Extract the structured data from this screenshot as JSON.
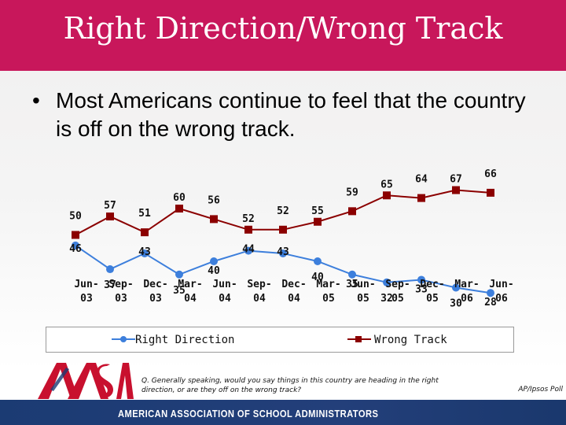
{
  "title": "Right Direction/Wrong Track",
  "bullet": {
    "symbol": "•",
    "text": "Most Americans continue to feel that the country is off on the wrong track."
  },
  "chart_data": {
    "type": "line",
    "categories": [
      [
        "Jun-",
        "03"
      ],
      [
        "Sep-",
        "03"
      ],
      [
        "Dec-",
        "03"
      ],
      [
        "Mar-",
        "04"
      ],
      [
        "Jun-",
        "04"
      ],
      [
        "Sep-",
        "04"
      ],
      [
        "Dec-",
        "04"
      ],
      [
        "Mar-",
        "05"
      ],
      [
        "Jun-",
        "05"
      ],
      [
        "Sep-",
        "05"
      ],
      [
        "Dec-",
        "05"
      ],
      [
        "Mar-",
        "06"
      ],
      [
        "Jun-",
        "06"
      ]
    ],
    "series": [
      {
        "name": "Right Direction",
        "color": "#3d7fdc",
        "marker": "circle",
        "values": [
          46,
          37,
          43,
          35,
          40,
          44,
          43,
          40,
          35,
          32,
          33,
          30,
          28
        ]
      },
      {
        "name": "Wrong Track",
        "color": "#8b0000",
        "marker": "square",
        "values": [
          50,
          57,
          51,
          60,
          56,
          52,
          52,
          55,
          59,
          65,
          64,
          67,
          66
        ]
      }
    ],
    "legend_position": "bottom",
    "grid": false
  },
  "question": "Q. Generally speaking, would you say things in this country are heading in the right direction, or are they off on the wrong track?",
  "source": "AP/Ipsos Poll",
  "footer": {
    "org_name": "AMERICAN ASSOCIATION OF SCHOOL ADMINISTRATORS",
    "logo_colors": [
      "#c8102e",
      "#1b3b73"
    ]
  }
}
